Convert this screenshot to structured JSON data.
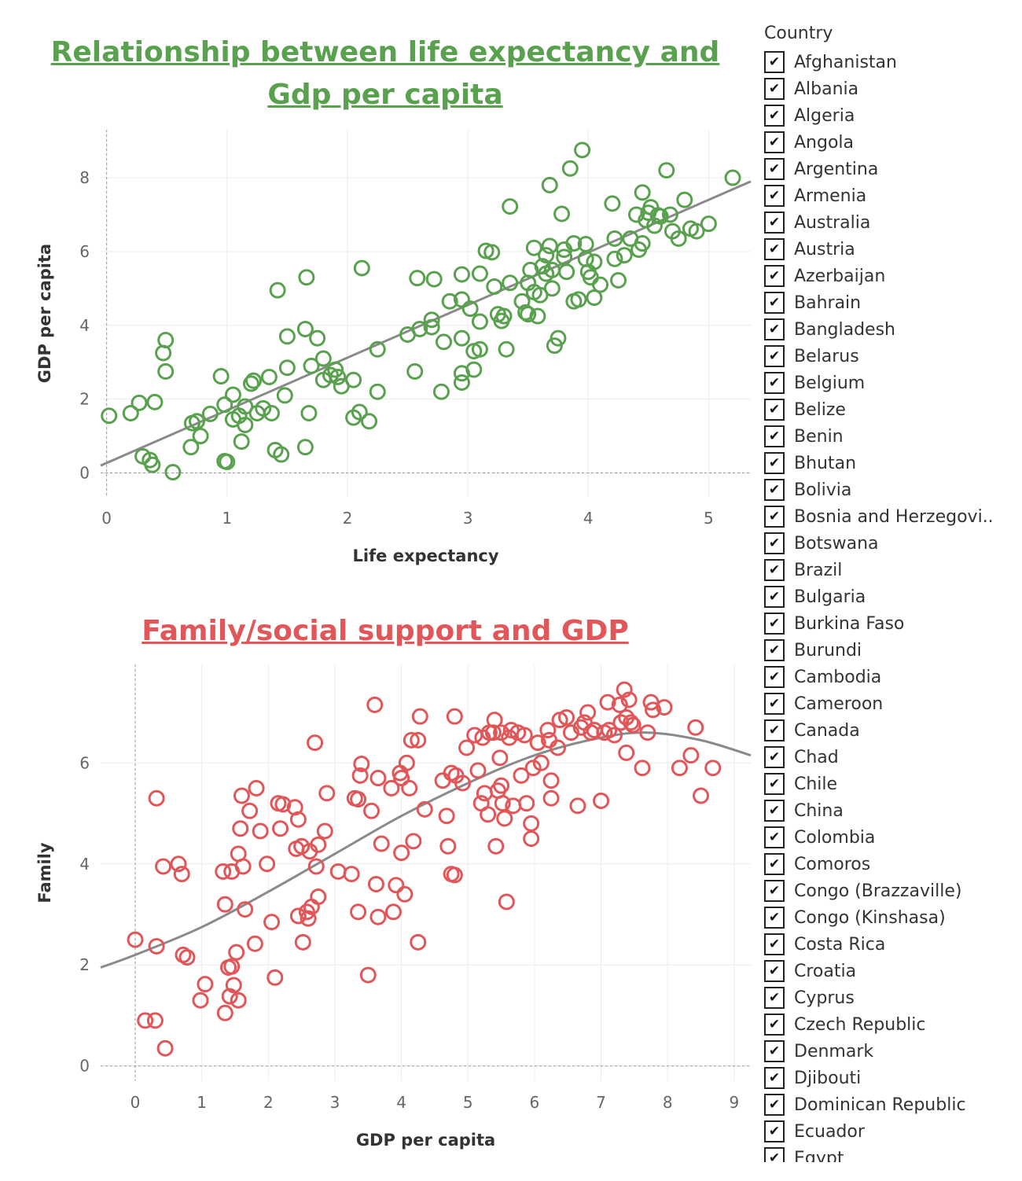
{
  "filter": {
    "title": "Country",
    "check_icon": "check-icon",
    "items": [
      "Afghanistan",
      "Albania",
      "Algeria",
      "Angola",
      "Argentina",
      "Armenia",
      "Australia",
      "Austria",
      "Azerbaijan",
      "Bahrain",
      "Bangladesh",
      "Belarus",
      "Belgium",
      "Belize",
      "Benin",
      "Bhutan",
      "Bolivia",
      "Bosnia and Herzegovi..",
      "Botswana",
      "Brazil",
      "Bulgaria",
      "Burkina Faso",
      "Burundi",
      "Cambodia",
      "Cameroon",
      "Canada",
      "Chad",
      "Chile",
      "China",
      "Colombia",
      "Comoros",
      "Congo (Brazzaville)",
      "Congo (Kinshasa)",
      "Costa Rica",
      "Croatia",
      "Cyprus",
      "Czech Republic",
      "Denmark",
      "Djibouti",
      "Dominican Republic",
      "Ecuador",
      "Egypt"
    ]
  },
  "chart_data": [
    {
      "type": "scatter",
      "title": "Relationship between life expectancy and Gdp per capita",
      "color": "#59a14f",
      "trend_color": "#8a8a8a",
      "xlabel": "Life expectancy",
      "ylabel": "GDP per capita",
      "xlim": [
        -0.05,
        5.35
      ],
      "ylim": [
        -0.65,
        9.3
      ],
      "xticks": [
        0,
        1,
        2,
        3,
        4,
        5
      ],
      "yticks": [
        0,
        2,
        4,
        6,
        8
      ],
      "grid": true,
      "trendline": {
        "kind": "linear",
        "points": [
          [
            -0.05,
            0.2
          ],
          [
            5.35,
            7.9
          ]
        ]
      },
      "points": [
        [
          0.02,
          1.55
        ],
        [
          0.2,
          1.62
        ],
        [
          0.27,
          1.9
        ],
        [
          0.4,
          1.92
        ],
        [
          0.3,
          0.45
        ],
        [
          0.36,
          0.35
        ],
        [
          0.38,
          0.22
        ],
        [
          0.49,
          3.6
        ],
        [
          0.47,
          3.25
        ],
        [
          0.49,
          2.75
        ],
        [
          0.55,
          0.02
        ],
        [
          0.7,
          0.7
        ],
        [
          0.71,
          1.35
        ],
        [
          0.75,
          1.4
        ],
        [
          0.78,
          1.0
        ],
        [
          0.86,
          1.6
        ],
        [
          0.95,
          2.62
        ],
        [
          0.98,
          1.85
        ],
        [
          0.98,
          0.32
        ],
        [
          1.0,
          0.3
        ],
        [
          1.05,
          2.12
        ],
        [
          1.05,
          1.45
        ],
        [
          1.1,
          1.55
        ],
        [
          1.12,
          0.85
        ],
        [
          1.15,
          1.3
        ],
        [
          1.15,
          1.8
        ],
        [
          1.2,
          2.42
        ],
        [
          1.22,
          2.5
        ],
        [
          1.25,
          1.62
        ],
        [
          1.3,
          1.75
        ],
        [
          1.35,
          2.6
        ],
        [
          1.37,
          1.62
        ],
        [
          1.4,
          0.62
        ],
        [
          1.42,
          4.95
        ],
        [
          1.45,
          0.5
        ],
        [
          1.48,
          2.1
        ],
        [
          1.5,
          3.7
        ],
        [
          1.5,
          2.85
        ],
        [
          1.65,
          0.7
        ],
        [
          1.65,
          3.9
        ],
        [
          1.66,
          5.3
        ],
        [
          1.68,
          1.62
        ],
        [
          1.7,
          2.9
        ],
        [
          1.75,
          3.65
        ],
        [
          1.8,
          2.52
        ],
        [
          1.8,
          3.1
        ],
        [
          1.86,
          2.65
        ],
        [
          1.9,
          2.8
        ],
        [
          1.92,
          2.6
        ],
        [
          1.95,
          2.35
        ],
        [
          2.05,
          2.52
        ],
        [
          2.05,
          1.5
        ],
        [
          2.1,
          1.65
        ],
        [
          2.12,
          5.55
        ],
        [
          2.18,
          1.4
        ],
        [
          2.25,
          2.2
        ],
        [
          2.25,
          3.35
        ],
        [
          2.5,
          3.75
        ],
        [
          2.56,
          2.75
        ],
        [
          2.58,
          5.28
        ],
        [
          2.6,
          3.9
        ],
        [
          2.7,
          4.15
        ],
        [
          2.7,
          3.95
        ],
        [
          2.72,
          5.25
        ],
        [
          2.78,
          2.2
        ],
        [
          2.8,
          3.55
        ],
        [
          2.85,
          4.65
        ],
        [
          2.95,
          5.38
        ],
        [
          2.95,
          4.7
        ],
        [
          2.95,
          3.65
        ],
        [
          2.95,
          2.7
        ],
        [
          2.95,
          2.45
        ],
        [
          3.02,
          4.45
        ],
        [
          3.05,
          3.3
        ],
        [
          3.05,
          2.8
        ],
        [
          3.1,
          3.35
        ],
        [
          3.1,
          4.1
        ],
        [
          3.1,
          5.4
        ],
        [
          3.15,
          6.02
        ],
        [
          3.2,
          5.98
        ],
        [
          3.22,
          5.05
        ],
        [
          3.25,
          4.3
        ],
        [
          3.28,
          4.12
        ],
        [
          3.3,
          4.25
        ],
        [
          3.32,
          3.35
        ],
        [
          3.35,
          5.15
        ],
        [
          3.35,
          7.22
        ],
        [
          3.45,
          4.65
        ],
        [
          3.48,
          4.35
        ],
        [
          3.5,
          4.3
        ],
        [
          3.5,
          5.15
        ],
        [
          3.52,
          5.5
        ],
        [
          3.55,
          6.1
        ],
        [
          3.55,
          4.9
        ],
        [
          3.58,
          4.25
        ],
        [
          3.6,
          4.82
        ],
        [
          3.62,
          5.6
        ],
        [
          3.65,
          5.9
        ],
        [
          3.65,
          5.4
        ],
        [
          3.68,
          7.8
        ],
        [
          3.68,
          6.15
        ],
        [
          3.7,
          5.5
        ],
        [
          3.7,
          5.0
        ],
        [
          3.72,
          3.45
        ],
        [
          3.75,
          3.65
        ],
        [
          3.78,
          7.02
        ],
        [
          3.8,
          6.05
        ],
        [
          3.8,
          5.85
        ],
        [
          3.82,
          5.45
        ],
        [
          3.85,
          8.25
        ],
        [
          3.88,
          6.22
        ],
        [
          3.88,
          4.65
        ],
        [
          3.92,
          4.7
        ],
        [
          3.95,
          8.75
        ],
        [
          3.98,
          6.2
        ],
        [
          3.98,
          5.8
        ],
        [
          4.0,
          5.45
        ],
        [
          4.02,
          5.3
        ],
        [
          4.05,
          5.72
        ],
        [
          4.05,
          4.75
        ],
        [
          4.1,
          5.1
        ],
        [
          4.2,
          7.3
        ],
        [
          4.22,
          5.8
        ],
        [
          4.22,
          6.35
        ],
        [
          4.25,
          5.22
        ],
        [
          4.3,
          5.9
        ],
        [
          4.35,
          6.35
        ],
        [
          4.4,
          7.0
        ],
        [
          4.42,
          6.05
        ],
        [
          4.45,
          6.22
        ],
        [
          4.45,
          7.6
        ],
        [
          4.48,
          6.85
        ],
        [
          4.5,
          7.05
        ],
        [
          4.52,
          7.2
        ],
        [
          4.55,
          6.7
        ],
        [
          4.58,
          6.98
        ],
        [
          4.6,
          6.95
        ],
        [
          4.65,
          8.2
        ],
        [
          4.68,
          7.0
        ],
        [
          4.7,
          6.55
        ],
        [
          4.75,
          6.35
        ],
        [
          4.8,
          7.4
        ],
        [
          4.85,
          6.62
        ],
        [
          4.9,
          6.55
        ],
        [
          5.0,
          6.75
        ],
        [
          5.2,
          8.0
        ]
      ]
    },
    {
      "type": "scatter",
      "title": "Family/social support and GDP",
      "color": "#e15759",
      "trend_color": "#8a8a8a",
      "xlabel": "GDP per capita",
      "ylabel": "Family",
      "xlim": [
        -0.52,
        9.25
      ],
      "ylim": [
        -0.3,
        7.95
      ],
      "xticks": [
        0,
        1,
        2,
        3,
        4,
        5,
        6,
        7,
        8,
        9
      ],
      "yticks": [
        0,
        2,
        4,
        6
      ],
      "grid": true,
      "trendline": {
        "kind": "polynomial",
        "points": [
          [
            -0.52,
            1.95
          ],
          [
            0,
            2.2
          ],
          [
            1,
            2.75
          ],
          [
            2,
            3.45
          ],
          [
            3,
            4.2
          ],
          [
            4,
            4.95
          ],
          [
            5,
            5.6
          ],
          [
            6,
            6.15
          ],
          [
            7,
            6.5
          ],
          [
            7.7,
            6.6
          ],
          [
            8.5,
            6.45
          ],
          [
            9.25,
            6.15
          ]
        ]
      },
      "points": [
        [
          0.0,
          2.5
        ],
        [
          0.15,
          0.9
        ],
        [
          0.3,
          0.9
        ],
        [
          0.32,
          2.37
        ],
        [
          0.32,
          5.3
        ],
        [
          0.42,
          3.95
        ],
        [
          0.45,
          0.35
        ],
        [
          0.65,
          4.0
        ],
        [
          0.7,
          3.8
        ],
        [
          0.72,
          2.2
        ],
        [
          0.78,
          2.15
        ],
        [
          0.98,
          1.3
        ],
        [
          1.05,
          1.62
        ],
        [
          1.32,
          3.85
        ],
        [
          1.35,
          3.2
        ],
        [
          1.35,
          1.05
        ],
        [
          1.4,
          1.95
        ],
        [
          1.42,
          1.38
        ],
        [
          1.45,
          3.85
        ],
        [
          1.45,
          1.97
        ],
        [
          1.48,
          1.6
        ],
        [
          1.52,
          2.25
        ],
        [
          1.55,
          1.3
        ],
        [
          1.55,
          4.2
        ],
        [
          1.58,
          4.7
        ],
        [
          1.6,
          5.35
        ],
        [
          1.62,
          3.95
        ],
        [
          1.65,
          3.1
        ],
        [
          1.72,
          5.05
        ],
        [
          1.8,
          2.42
        ],
        [
          1.82,
          5.5
        ],
        [
          1.88,
          4.65
        ],
        [
          1.98,
          4.0
        ],
        [
          2.05,
          2.85
        ],
        [
          2.1,
          1.75
        ],
        [
          2.15,
          5.2
        ],
        [
          2.18,
          4.7
        ],
        [
          2.22,
          5.18
        ],
        [
          2.4,
          5.12
        ],
        [
          2.42,
          4.3
        ],
        [
          2.45,
          2.97
        ],
        [
          2.45,
          4.88
        ],
        [
          2.5,
          4.35
        ],
        [
          2.52,
          2.45
        ],
        [
          2.58,
          3.05
        ],
        [
          2.6,
          2.92
        ],
        [
          2.62,
          4.25
        ],
        [
          2.65,
          3.15
        ],
        [
          2.7,
          6.4
        ],
        [
          2.72,
          3.95
        ],
        [
          2.75,
          3.35
        ],
        [
          2.75,
          4.38
        ],
        [
          2.85,
          4.65
        ],
        [
          2.88,
          5.4
        ],
        [
          3.05,
          3.85
        ],
        [
          3.25,
          3.8
        ],
        [
          3.3,
          5.3
        ],
        [
          3.35,
          5.28
        ],
        [
          3.35,
          3.05
        ],
        [
          3.38,
          5.75
        ],
        [
          3.4,
          5.98
        ],
        [
          3.5,
          1.8
        ],
        [
          3.55,
          5.05
        ],
        [
          3.6,
          7.15
        ],
        [
          3.62,
          3.6
        ],
        [
          3.65,
          5.7
        ],
        [
          3.65,
          2.95
        ],
        [
          3.7,
          4.4
        ],
        [
          3.85,
          5.5
        ],
        [
          3.88,
          3.05
        ],
        [
          3.92,
          3.58
        ],
        [
          3.98,
          5.8
        ],
        [
          4.0,
          4.22
        ],
        [
          4.0,
          5.7
        ],
        [
          4.05,
          3.4
        ],
        [
          4.08,
          6.0
        ],
        [
          4.12,
          5.5
        ],
        [
          4.15,
          6.45
        ],
        [
          4.18,
          4.45
        ],
        [
          4.25,
          6.45
        ],
        [
          4.25,
          2.45
        ],
        [
          4.28,
          6.92
        ],
        [
          4.35,
          5.08
        ],
        [
          4.62,
          5.65
        ],
        [
          4.68,
          4.95
        ],
        [
          4.7,
          4.35
        ],
        [
          4.75,
          5.8
        ],
        [
          4.75,
          3.8
        ],
        [
          4.8,
          3.78
        ],
        [
          4.82,
          5.75
        ],
        [
          4.8,
          6.92
        ],
        [
          4.92,
          5.6
        ],
        [
          4.98,
          6.3
        ],
        [
          5.1,
          6.55
        ],
        [
          5.15,
          5.85
        ],
        [
          5.2,
          5.2
        ],
        [
          5.22,
          6.5
        ],
        [
          5.25,
          5.4
        ],
        [
          5.3,
          4.98
        ],
        [
          5.32,
          6.6
        ],
        [
          5.38,
          6.6
        ],
        [
          5.4,
          6.85
        ],
        [
          5.42,
          4.35
        ],
        [
          5.45,
          5.45
        ],
        [
          5.48,
          6.1
        ],
        [
          5.5,
          5.55
        ],
        [
          5.5,
          6.6
        ],
        [
          5.52,
          5.2
        ],
        [
          5.55,
          4.9
        ],
        [
          5.58,
          3.25
        ],
        [
          5.62,
          6.5
        ],
        [
          5.65,
          6.65
        ],
        [
          5.68,
          5.15
        ],
        [
          5.75,
          6.6
        ],
        [
          5.8,
          5.75
        ],
        [
          5.85,
          6.55
        ],
        [
          5.88,
          5.2
        ],
        [
          5.95,
          4.5
        ],
        [
          5.95,
          4.8
        ],
        [
          5.98,
          5.9
        ],
        [
          6.05,
          6.4
        ],
        [
          6.1,
          6.0
        ],
        [
          6.2,
          6.65
        ],
        [
          6.22,
          6.45
        ],
        [
          6.25,
          5.3
        ],
        [
          6.25,
          5.65
        ],
        [
          6.35,
          6.3
        ],
        [
          6.38,
          6.85
        ],
        [
          6.48,
          6.9
        ],
        [
          6.55,
          6.6
        ],
        [
          6.65,
          5.15
        ],
        [
          6.7,
          6.7
        ],
        [
          6.75,
          6.8
        ],
        [
          6.8,
          7.0
        ],
        [
          6.85,
          6.6
        ],
        [
          6.9,
          6.65
        ],
        [
          7.0,
          5.25
        ],
        [
          7.05,
          6.6
        ],
        [
          7.1,
          7.2
        ],
        [
          7.12,
          6.65
        ],
        [
          7.2,
          6.55
        ],
        [
          7.28,
          7.15
        ],
        [
          7.3,
          6.8
        ],
        [
          7.35,
          7.45
        ],
        [
          7.38,
          6.9
        ],
        [
          7.38,
          6.2
        ],
        [
          7.42,
          7.25
        ],
        [
          7.45,
          6.8
        ],
        [
          7.48,
          6.75
        ],
        [
          7.62,
          5.9
        ],
        [
          7.7,
          6.6
        ],
        [
          7.75,
          7.2
        ],
        [
          7.78,
          7.05
        ],
        [
          7.95,
          7.1
        ],
        [
          8.18,
          5.9
        ],
        [
          8.35,
          6.15
        ],
        [
          8.42,
          6.7
        ],
        [
          8.5,
          5.35
        ],
        [
          8.68,
          5.9
        ]
      ]
    }
  ]
}
